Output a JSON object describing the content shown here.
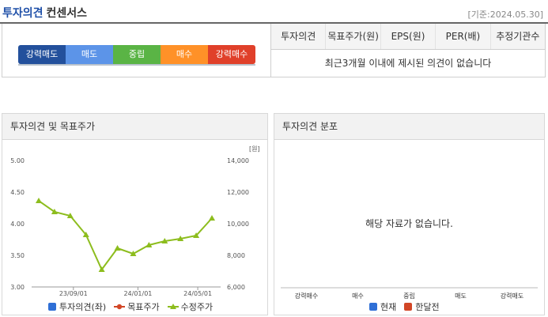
{
  "header": {
    "title_blue": "투자의견",
    "title_dark": "컨센서스",
    "date": "[기준:2024.05.30]"
  },
  "consensus": {
    "scale": [
      "강력매도",
      "매도",
      "중립",
      "매수",
      "강력매수"
    ],
    "columns": [
      "투자의견",
      "목표주가(원)",
      "EPS(원)",
      "PER(배)",
      "추정기관수"
    ],
    "empty_message": "최근3개월 이내에 제시된 의견이 없습니다"
  },
  "left_panel": {
    "title": "투자의견 및 목표주가",
    "legend": [
      "투자의견(좌)",
      "목표주가",
      "수정주가"
    ]
  },
  "right_panel": {
    "title": "투자의견 분포",
    "no_data": "해당 자료가 없습니다.",
    "categories": [
      "강력매수",
      "매수",
      "중립",
      "매도",
      "강력매도"
    ],
    "legend": [
      "현재",
      "한달전"
    ]
  },
  "colors": {
    "opinion": "#2f6fd6",
    "target": "#d24626",
    "price": "#8dbd1e",
    "current": "#2f6fd6",
    "month_ago": "#d24626"
  },
  "chart_data": [
    {
      "type": "line",
      "title": "",
      "left_axis": {
        "ticks": [
          "3.00",
          "3.50",
          "4.00",
          "4.50",
          "5.00"
        ],
        "ylim": [
          3.0,
          5.0
        ]
      },
      "right_axis": {
        "unit": "[원]",
        "ticks": [
          "6,000",
          "8,000",
          "10,000",
          "12,000",
          "14,000"
        ],
        "ylim": [
          6000,
          14000
        ]
      },
      "x_ticks": [
        "23/09/01",
        "24/01/01",
        "24/05/01"
      ],
      "series": [
        {
          "name": "수정주가",
          "axis": "right",
          "x": [
            "23/07",
            "23/08",
            "23/09",
            "23/10",
            "23/11",
            "23/12",
            "24/01",
            "24/02",
            "24/03",
            "24/04",
            "24/05",
            "24/06"
          ],
          "values": [
            11450,
            10750,
            10500,
            9300,
            7100,
            8450,
            8100,
            8650,
            8900,
            9050,
            9250,
            10350
          ]
        },
        {
          "name": "투자의견",
          "axis": "left",
          "values": []
        },
        {
          "name": "목표주가",
          "axis": "right",
          "values": []
        }
      ]
    }
  ]
}
